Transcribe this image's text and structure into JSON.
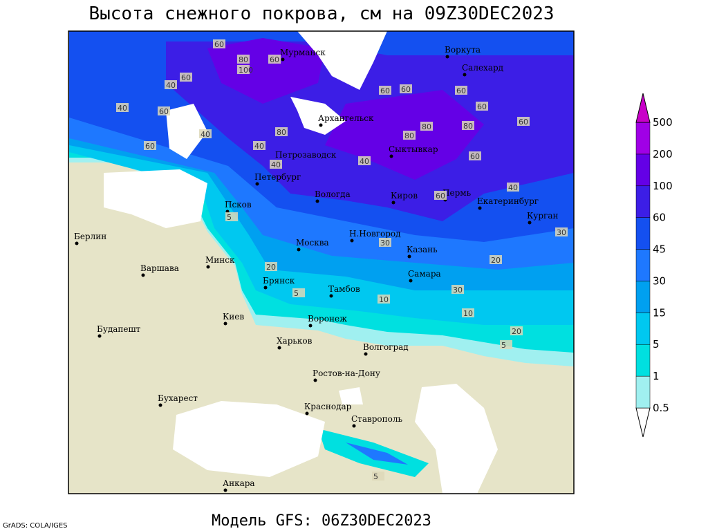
{
  "title": "Высота снежного покрова, см на 09Z30DEC2023",
  "footer": "Модель GFS: 06Z30DEC2023",
  "credit": "GrADS: COLA/IGES",
  "legend": {
    "levels": [
      0.5,
      1,
      5,
      15,
      30,
      45,
      60,
      100,
      200,
      500
    ],
    "colors": [
      "#ffffff",
      "#a0f0f0",
      "#00e0e0",
      "#00c8f0",
      "#00a0f0",
      "#1e78ff",
      "#1450f0",
      "#3c1ee6",
      "#6400e6",
      "#a000e6",
      "#c800c8"
    ]
  },
  "cities": [
    "Мурманск",
    "Воркута",
    "Салехард",
    "Архангельск",
    "Петрозаводск",
    "Сыктывкар",
    "Петербург",
    "Вологда",
    "Киров",
    "Пермь",
    "Екатеринбург",
    "Курган",
    "Псков",
    "Москва",
    "Н.Новгород",
    "Казань",
    "Берлин",
    "Варшава",
    "Минск",
    "Брянск",
    "Тамбов",
    "Самара",
    "Воронеж",
    "Киев",
    "Будапешт",
    "Харьков",
    "Волгоград",
    "Ростов-на-Дону",
    "Бухарест",
    "Краснодар",
    "Ставрополь",
    "Анкара"
  ],
  "contour_labels": [
    60,
    80,
    100,
    60,
    40,
    60,
    40,
    60,
    80,
    60,
    60,
    40,
    60,
    40,
    40,
    60,
    80,
    60,
    80,
    80,
    60,
    60,
    40,
    60,
    40,
    30,
    30,
    20,
    20,
    30,
    10,
    5,
    5,
    10,
    20,
    5,
    5
  ]
}
